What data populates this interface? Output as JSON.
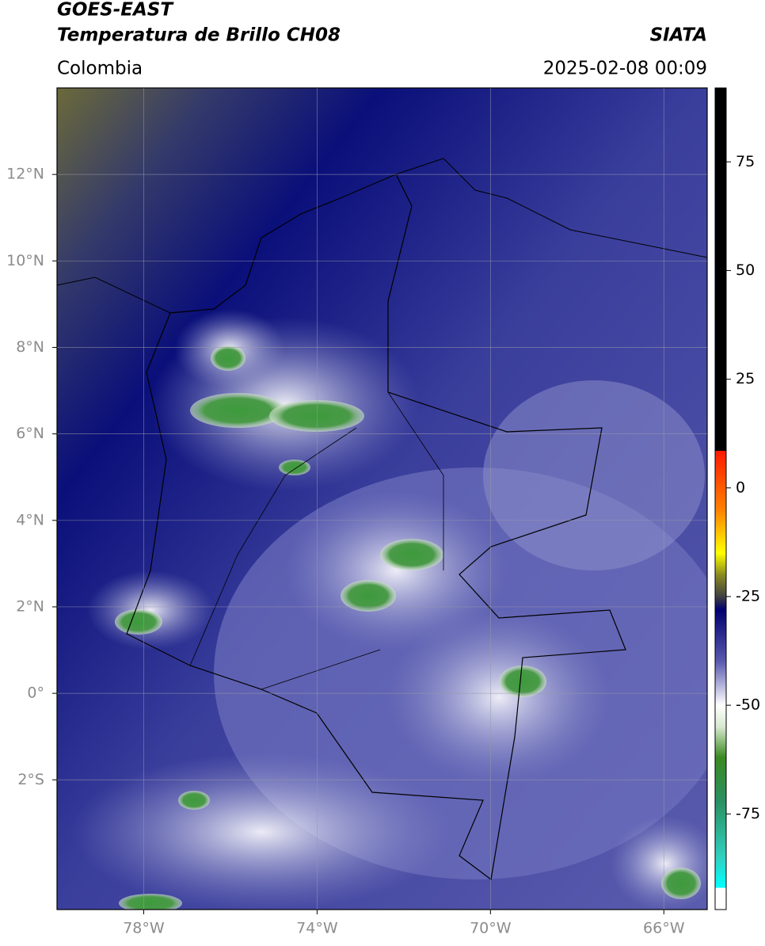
{
  "header": {
    "satellite": "GOES-EAST",
    "product": "Temperatura de Brillo CH08",
    "source": "SIATA",
    "region": "Colombia",
    "datetime": "2025-02-08 00:09"
  },
  "map": {
    "xlim": [
      -80,
      -65
    ],
    "ylim": [
      -5,
      14
    ],
    "xticks": [
      {
        "value": -78,
        "label": "78°W"
      },
      {
        "value": -74,
        "label": "74°W"
      },
      {
        "value": -70,
        "label": "70°W"
      },
      {
        "value": -66,
        "label": "66°W"
      }
    ],
    "yticks": [
      {
        "value": 12,
        "label": "12°N"
      },
      {
        "value": 10,
        "label": "10°N"
      },
      {
        "value": 8,
        "label": "8°N"
      },
      {
        "value": 6,
        "label": "6°N"
      },
      {
        "value": 4,
        "label": "4°N"
      },
      {
        "value": 2,
        "label": "2°N"
      },
      {
        "value": 0,
        "label": "0°"
      },
      {
        "value": -2,
        "label": "2°S"
      }
    ],
    "grid": true
  },
  "colorbar": {
    "lim": [
      -97,
      92
    ],
    "ticks": [
      75,
      50,
      25,
      0,
      -25,
      -50,
      -75
    ],
    "stops": [
      {
        "value": 92,
        "color": "#000000"
      },
      {
        "value": 8.5,
        "color": "#000000"
      },
      {
        "value": 8.5,
        "color": "#ff1a00"
      },
      {
        "value": -5,
        "color": "#ff8000"
      },
      {
        "value": -15,
        "color": "#ffff00"
      },
      {
        "value": -20,
        "color": "#8a8a20"
      },
      {
        "value": -25,
        "color": "#404040"
      },
      {
        "value": -28,
        "color": "#000070"
      },
      {
        "value": -40,
        "color": "#5a5ab0"
      },
      {
        "value": -50,
        "color": "#ffffff"
      },
      {
        "value": -55,
        "color": "#d8e8d0"
      },
      {
        "value": -62,
        "color": "#3a8a20"
      },
      {
        "value": -72,
        "color": "#2a9060"
      },
      {
        "value": -85,
        "color": "#30d0c0"
      },
      {
        "value": -92,
        "color": "#00ffff"
      },
      {
        "value": -92,
        "color": "#ffffff"
      },
      {
        "value": -97,
        "color": "#ffffff"
      }
    ]
  }
}
